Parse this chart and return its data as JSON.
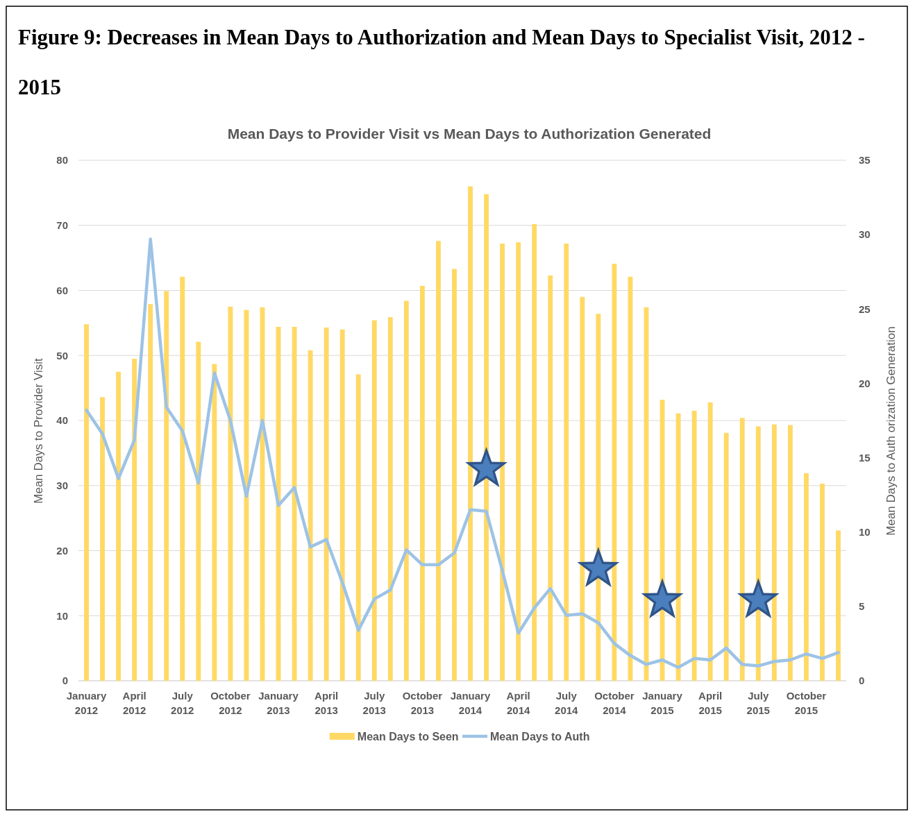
{
  "chart_data": {
    "type": "bar",
    "title": "Figure 9: Decreases in Mean Days to Authorization and Mean Days to Specialist Visit, 2012 - 2015",
    "subtitle": "Mean Days to Provider Visit vs Mean Days to Authorization Generated",
    "ylabel": "Mean Days to Provider Visit",
    "y2label": "Mean Days to Auth orization Generation",
    "categories": [
      "January 2012",
      null,
      null,
      "April 2012",
      null,
      null,
      "July 2012",
      null,
      null,
      "October 2012",
      null,
      null,
      "January 2013",
      null,
      null,
      "April 2013",
      null,
      null,
      "July 2013",
      null,
      null,
      "October 2013",
      null,
      null,
      "January 2014",
      null,
      null,
      "April 2014",
      null,
      null,
      "July 2014",
      null,
      null,
      "October 2014",
      null,
      null,
      "January 2015",
      null,
      null,
      "April 2015",
      null,
      null,
      "July 2015",
      null,
      null,
      "October 2015",
      null,
      null
    ],
    "series": [
      {
        "name": "Mean Days to Seen",
        "color": "#ffd966",
        "values": [
          54.8,
          43.6,
          47.5,
          49.5,
          57.9,
          59.9,
          62.1,
          52.1,
          48.7,
          57.5,
          57.0,
          57.4,
          54.4,
          54.4,
          50.8,
          54.3,
          54.0,
          47.1,
          55.4,
          55.9,
          58.4,
          60.7,
          67.6,
          63.3,
          76.0,
          74.8,
          67.2,
          67.4,
          70.2,
          62.3,
          67.2,
          59.0,
          56.4,
          64.1,
          62.1,
          57.4,
          43.2,
          41.1,
          41.5,
          42.8,
          38.1,
          40.4,
          39.1,
          39.4,
          39.3,
          31.9,
          30.3,
          23.1
        ]
      },
      {
        "name": "Mean Days to Auth",
        "type": "line",
        "axis": "y2",
        "color": "#9dc3e6",
        "values": [
          18.2,
          16.6,
          13.6,
          16.2,
          29.7,
          18.4,
          16.8,
          13.3,
          20.7,
          17.5,
          12.4,
          17.5,
          11.8,
          13.0,
          9.0,
          9.5,
          6.6,
          3.4,
          5.5,
          6.1,
          8.8,
          7.8,
          7.8,
          8.6,
          11.5,
          11.4,
          7.4,
          3.2,
          4.9,
          6.2,
          4.4,
          4.5,
          3.9,
          2.5,
          1.7,
          1.1,
          1.4,
          0.9,
          1.5,
          1.4,
          2.2,
          1.1,
          1.0,
          1.3,
          1.4,
          1.8,
          1.5,
          1.9
        ]
      }
    ],
    "ylim": [
      0,
      80
    ],
    "yticks": [
      0,
      10,
      20,
      30,
      40,
      50,
      60,
      70,
      80
    ],
    "y2lim": [
      0,
      35
    ],
    "y2ticks": [
      0,
      5,
      10,
      15,
      20,
      25,
      30,
      35
    ],
    "grid": "y",
    "legend": "bottom",
    "marker": "none",
    "line_style": "solid"
  }
}
